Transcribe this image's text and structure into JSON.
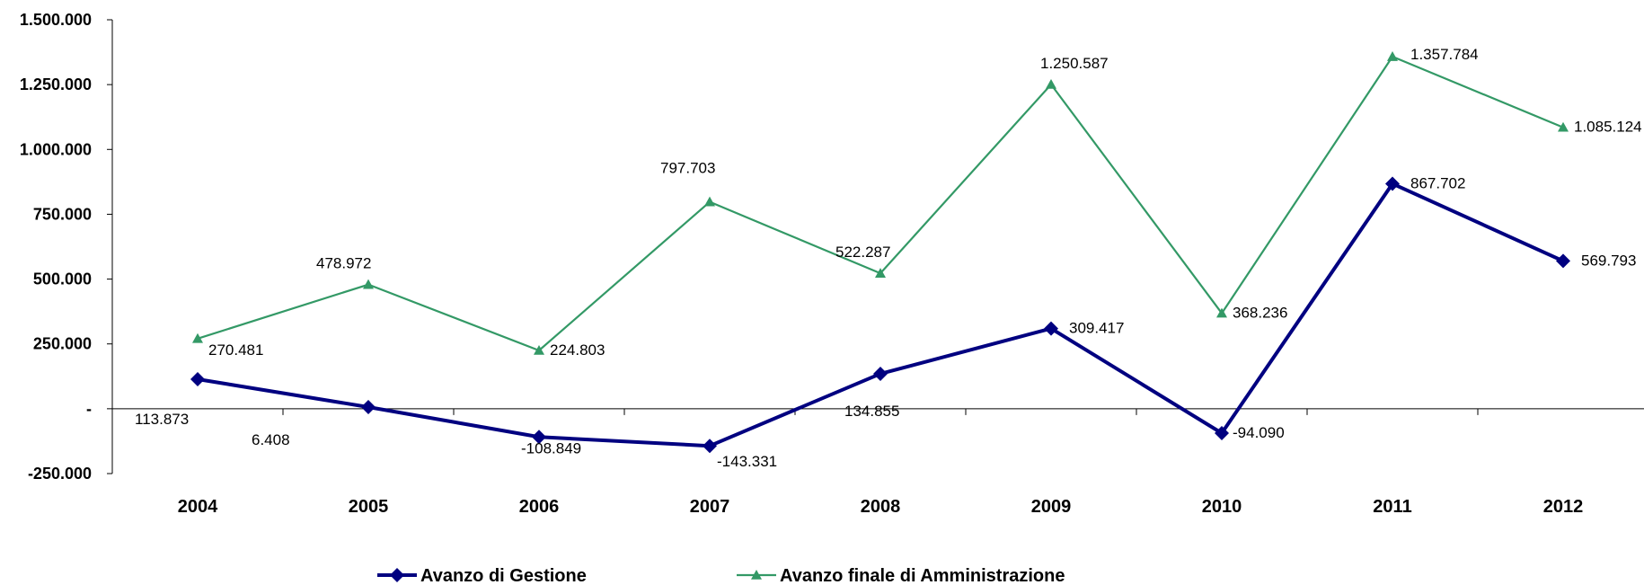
{
  "chart_data": {
    "type": "line",
    "categories": [
      "2004",
      "2005",
      "2006",
      "2007",
      "2008",
      "2009",
      "2010",
      "2011",
      "2012"
    ],
    "ylim": [
      -250000,
      1500000
    ],
    "yticks": [
      {
        "value": 1500000,
        "label": "1.500.000"
      },
      {
        "value": 1250000,
        "label": "1.250.000"
      },
      {
        "value": 1000000,
        "label": "1.000.000"
      },
      {
        "value": 750000,
        "label": "750.000"
      },
      {
        "value": 500000,
        "label": "500.000"
      },
      {
        "value": 250000,
        "label": "250.000"
      },
      {
        "value": 0,
        "label": "-"
      },
      {
        "value": -250000,
        "label": "-250.000"
      }
    ],
    "grid": false,
    "legend": "bottom",
    "series": [
      {
        "name": "Avanzo di Gestione",
        "color": "#000080",
        "marker": "diamond",
        "values": [
          113873,
          6408,
          -108849,
          -143331,
          134855,
          309417,
          -94090,
          867702,
          569793
        ],
        "labels": [
          "113.873",
          "6.408",
          "-108.849",
          "-143.331",
          "134.855",
          "309.417",
          "-94.090",
          "867.702",
          "569.793"
        ]
      },
      {
        "name": "Avanzo finale di Amministrazione",
        "color": "#339966",
        "marker": "triangle",
        "values": [
          270481,
          478972,
          224803,
          797703,
          522287,
          1250587,
          368236,
          1357784,
          1085124
        ],
        "labels": [
          "270.481",
          "478.972",
          "224.803",
          "797.703",
          "522.287",
          "1.250.587",
          "368.236",
          "1.357.784",
          "1.085.124"
        ]
      }
    ]
  }
}
